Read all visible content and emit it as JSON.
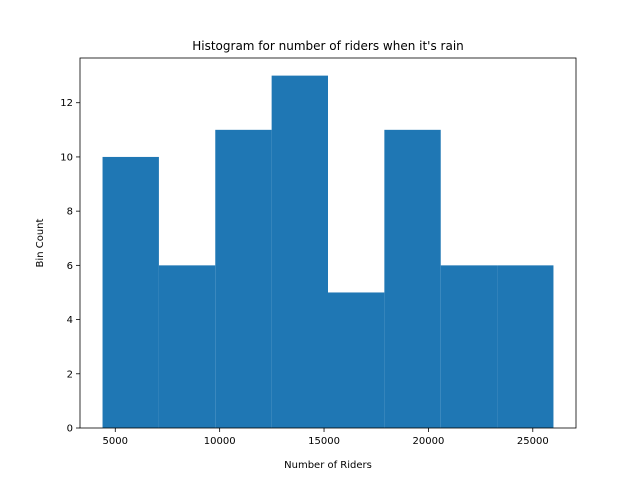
{
  "chart_data": {
    "type": "bar",
    "title": "Histogram for number of riders when it's rain",
    "xlabel": "Number of Riders",
    "ylabel": "Bin Count",
    "bin_edges": [
      4390,
      7090,
      9790,
      12490,
      15190,
      17890,
      20590,
      23290,
      25990
    ],
    "values": [
      10,
      6,
      11,
      13,
      5,
      11,
      6,
      6
    ],
    "xlim": [
      3310,
      27070
    ],
    "ylim": [
      0,
      13.65
    ],
    "xticks": [
      5000,
      10000,
      15000,
      20000,
      25000
    ],
    "xtick_labels": [
      "5000",
      "10000",
      "15000",
      "20000",
      "25000"
    ],
    "yticks": [
      0,
      2,
      4,
      6,
      8,
      10,
      12
    ],
    "ytick_labels": [
      "0",
      "2",
      "4",
      "6",
      "8",
      "10",
      "12"
    ],
    "bar_color": "#1f77b4",
    "grid": false,
    "legend": "none"
  }
}
